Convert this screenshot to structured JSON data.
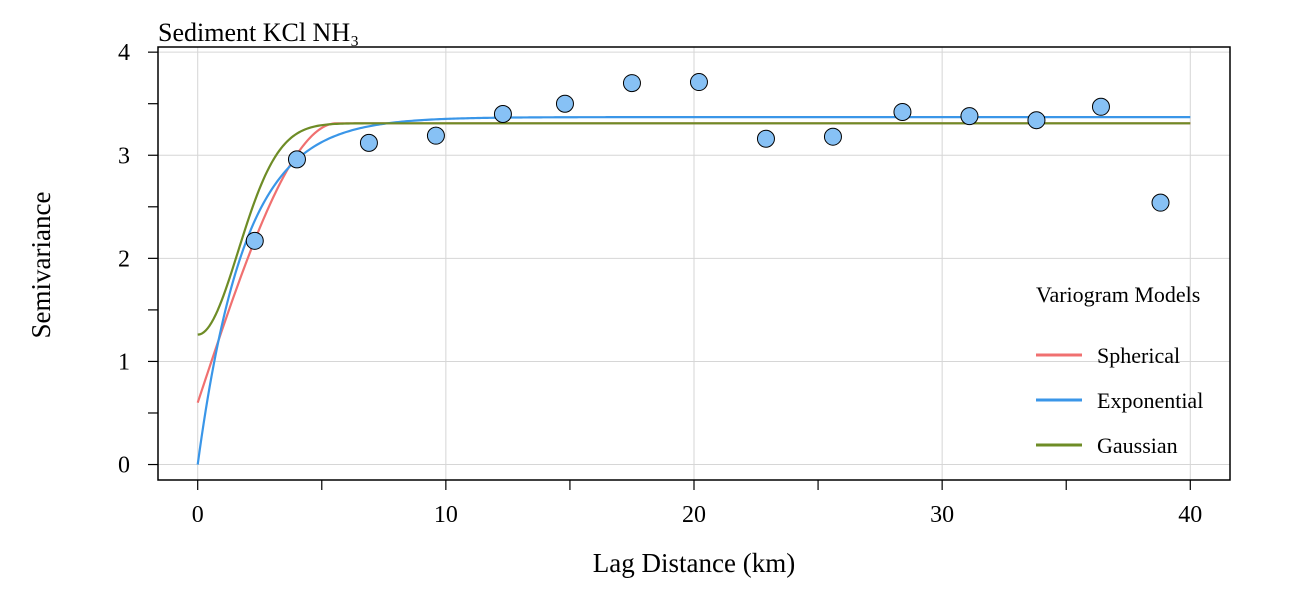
{
  "chart_data": {
    "type": "scatter",
    "title": "Sediment KCl NH₃",
    "xlabel": "Lag Distance (km)",
    "ylabel": "Semivariance",
    "xlim": [
      -1.6,
      41.6
    ],
    "ylim": [
      -0.15,
      4.05
    ],
    "xticks": [
      0,
      10,
      20,
      30,
      40
    ],
    "xticklabels": [
      "0",
      "10",
      "20",
      "30",
      "40"
    ],
    "xminor": [
      5,
      15,
      25,
      35
    ],
    "yticks": [
      0,
      1,
      2,
      3,
      4
    ],
    "yticklabels": [
      "0",
      "1",
      "2",
      "3",
      "4"
    ],
    "yminor": [
      0.5,
      1.5,
      2.5,
      3.5
    ],
    "grid": true,
    "legend_position": "right",
    "points": {
      "x": [
        2.3,
        4.0,
        6.9,
        9.6,
        12.3,
        14.8,
        17.5,
        20.2,
        22.9,
        25.6,
        28.4,
        31.1,
        33.8,
        36.4,
        38.8
      ],
      "y": [
        2.17,
        2.96,
        3.12,
        3.19,
        3.4,
        3.5,
        3.7,
        3.71,
        3.16,
        3.18,
        3.42,
        3.38,
        3.34,
        3.47,
        2.54
      ],
      "fill": "#87c1f5",
      "stroke": "#000000"
    },
    "legend_title": "Variogram Models",
    "series": [
      {
        "name": "Spherical",
        "color": "#f07070",
        "model": "spherical",
        "nugget": 0.6,
        "sill": 3.31,
        "range": 5.6,
        "xmax": 40
      },
      {
        "name": "Exponential",
        "color": "#3a96e8",
        "model": "exponential",
        "nugget": 0.0,
        "sill": 3.37,
        "range": 1.9,
        "xmax": 40
      },
      {
        "name": "Gaussian",
        "color": "#6e8c26",
        "model": "gaussian",
        "nugget": 1.26,
        "sill": 3.31,
        "range": 2.3,
        "xmax": 40
      }
    ]
  }
}
